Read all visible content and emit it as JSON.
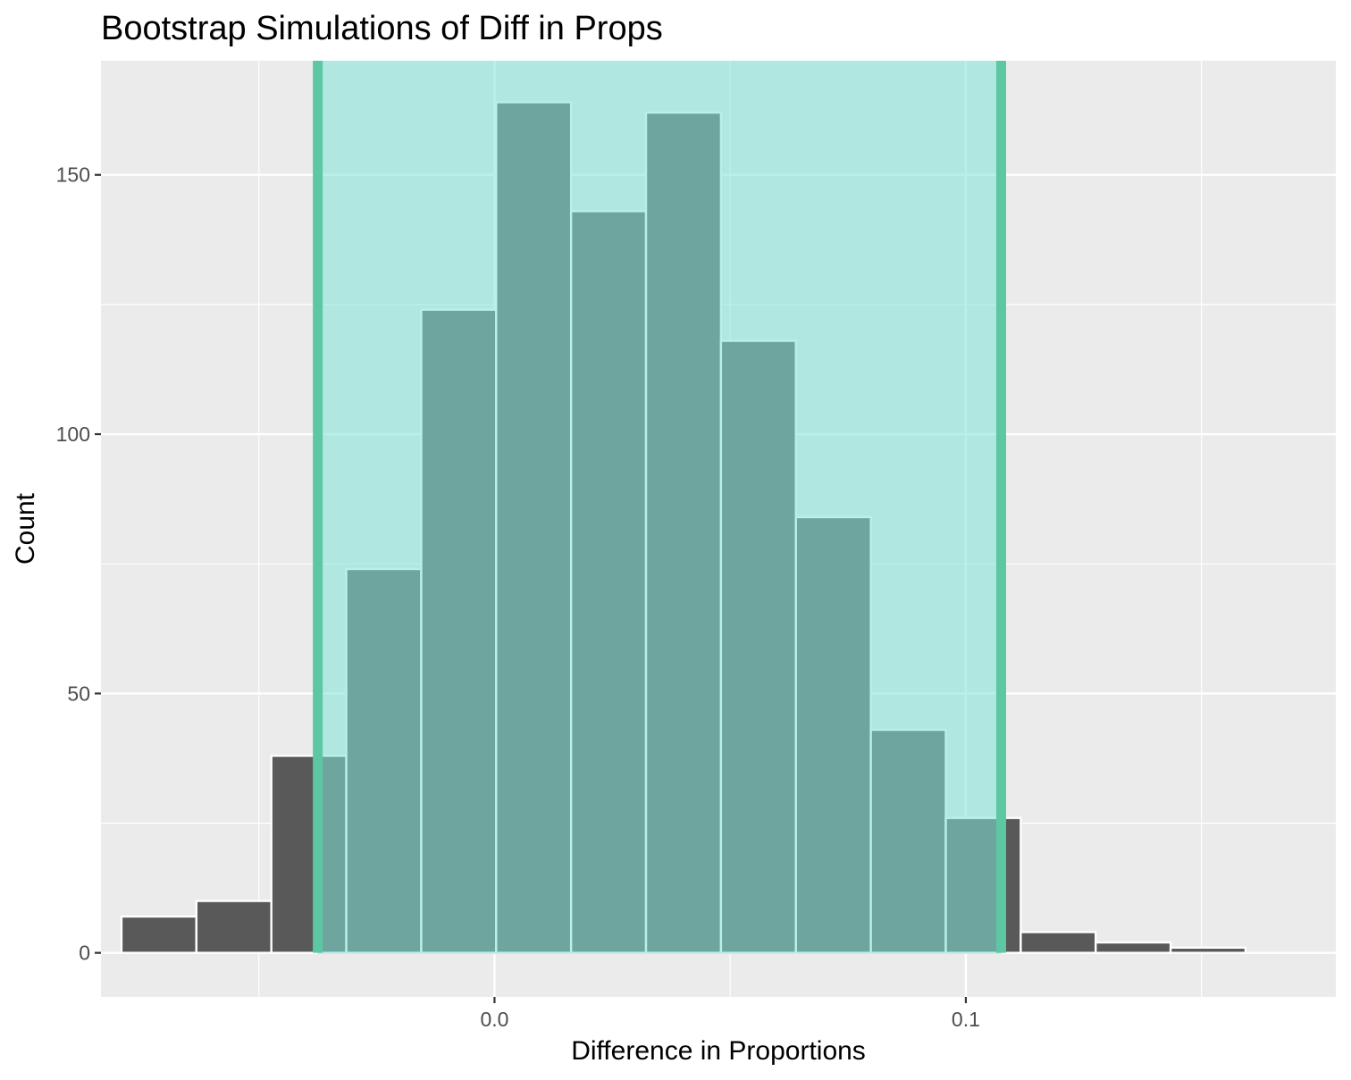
{
  "chart_data": {
    "type": "bar",
    "title": "Bootstrap Simulations of Diff in Props",
    "xlabel": "Difference in Proportions",
    "ylabel": "Count",
    "xlim": [
      -0.0835,
      0.1785
    ],
    "ylim": [
      -8.5,
      172
    ],
    "x_ticks": [
      {
        "value": 0.0,
        "label": "0.0"
      },
      {
        "value": 0.1,
        "label": "0.1"
      }
    ],
    "x_minor_ticks": [
      -0.05,
      0.05,
      0.15
    ],
    "y_ticks": [
      {
        "value": 0,
        "label": "0"
      },
      {
        "value": 50,
        "label": "50"
      },
      {
        "value": 100,
        "label": "100"
      },
      {
        "value": 150,
        "label": "150"
      }
    ],
    "y_minor_ticks": [
      25,
      75,
      125
    ],
    "grid": true,
    "legend": "none",
    "bin_width": 0.0159,
    "bins": [
      {
        "x": -0.0712,
        "count": 7
      },
      {
        "x": -0.0553,
        "count": 10
      },
      {
        "x": -0.0394,
        "count": 38
      },
      {
        "x": -0.0235,
        "count": 74
      },
      {
        "x": -0.0076,
        "count": 124
      },
      {
        "x": 0.0083,
        "count": 164
      },
      {
        "x": 0.0242,
        "count": 143
      },
      {
        "x": 0.0401,
        "count": 162
      },
      {
        "x": 0.056,
        "count": 118
      },
      {
        "x": 0.0719,
        "count": 84
      },
      {
        "x": 0.0878,
        "count": 43
      },
      {
        "x": 0.1037,
        "count": 26
      },
      {
        "x": 0.1196,
        "count": 4
      },
      {
        "x": 0.1355,
        "count": 2
      },
      {
        "x": 0.1514,
        "count": 1
      }
    ],
    "confidence_interval": {
      "lower": -0.0375,
      "upper": 0.1075
    },
    "colors": {
      "panel_background": "#EBEBEB",
      "grid": "#FFFFFF",
      "bar_fill": "#595959",
      "bar_outline": "#FFFFFF",
      "ci_shade": "#7FE3D9",
      "ci_line": "#5CC7A2",
      "axis_text": "#4D4D4D",
      "axis_ticks": "#333333"
    }
  }
}
